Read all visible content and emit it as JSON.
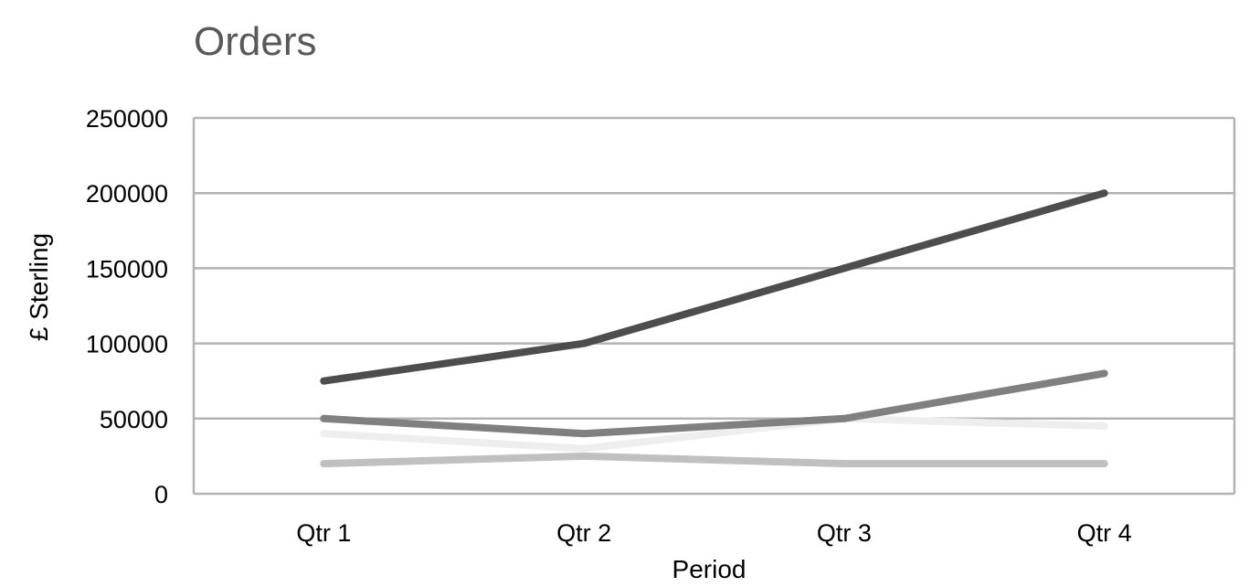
{
  "chart_data": {
    "type": "line",
    "title": "Orders",
    "xlabel": "Period",
    "ylabel": "£ Sterling",
    "categories": [
      "Qtr 1",
      "Qtr 2",
      "Qtr 3",
      "Qtr 4"
    ],
    "ylim": [
      0,
      250000
    ],
    "yticks": [
      "0",
      "50000",
      "100000",
      "150000",
      "200000",
      "250000"
    ],
    "grid": true,
    "legend": "none",
    "series": [
      {
        "values": [
          75000,
          100000,
          150000,
          200000
        ],
        "color": "#4d4d4d"
      },
      {
        "values": [
          50000,
          40000,
          50000,
          80000
        ],
        "color": "#808080"
      },
      {
        "values": [
          40000,
          30000,
          50000,
          45000
        ],
        "color": "#eeeeee"
      },
      {
        "values": [
          20000,
          25000,
          20000,
          20000
        ],
        "color": "#c0c0c0"
      }
    ]
  }
}
